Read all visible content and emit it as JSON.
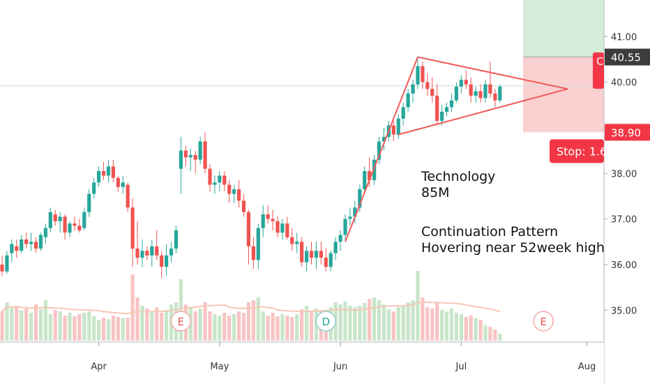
{
  "chart_data": {
    "type": "candlestick",
    "y_axis": {
      "range": [
        34.3,
        41.8
      ],
      "ticks": [
        "41.00",
        "40.00",
        "38.00",
        "37.00",
        "36.00",
        "35.00"
      ],
      "gridline": 39.92
    },
    "x_axis": {
      "ticks": [
        "Apr",
        "May",
        "Jun",
        "Jul",
        "Aug"
      ]
    },
    "price_tags": [
      {
        "label": "40.55",
        "value": 40.55,
        "color": "#3c3c3c"
      },
      {
        "label": "38.90",
        "value": 38.9,
        "color": "#f23645"
      }
    ],
    "stop_label": "Stop: 1.6",
    "position_zones": {
      "target_top": 41.8,
      "entry": 40.55,
      "stop": 38.9,
      "target_color": "#d5ecd8",
      "stop_color": "#fbd0d0"
    },
    "event_markers": [
      {
        "label": "E",
        "bar": 37
      },
      {
        "label": "D",
        "bar": 67
      },
      {
        "label": "E",
        "bar": 112
      }
    ],
    "annotations": [
      {
        "lines": [
          "Technology",
          "85M"
        ]
      },
      {
        "lines": [
          "Continuation Pattern",
          "Hovering near 52week high"
        ]
      }
    ],
    "colors": {
      "up": "#26a69a",
      "down": "#ef5350",
      "trendline": "#f05a5a",
      "volume_ma": "#f6c7b4"
    },
    "candles": [
      [
        36.0,
        36.2,
        35.75,
        35.85
      ],
      [
        35.85,
        36.3,
        35.8,
        36.2
      ],
      [
        36.25,
        36.55,
        36.05,
        36.45
      ],
      [
        36.4,
        36.55,
        36.15,
        36.3
      ],
      [
        36.3,
        36.65,
        36.25,
        36.55
      ],
      [
        36.55,
        36.7,
        36.35,
        36.45
      ],
      [
        36.45,
        36.7,
        36.3,
        36.5
      ],
      [
        36.5,
        36.6,
        36.25,
        36.35
      ],
      [
        36.35,
        36.7,
        36.3,
        36.65
      ],
      [
        36.6,
        36.9,
        36.45,
        36.8
      ],
      [
        36.8,
        37.25,
        36.7,
        37.15
      ],
      [
        37.1,
        37.2,
        36.85,
        36.95
      ],
      [
        36.95,
        37.15,
        36.7,
        37.05
      ],
      [
        37.05,
        37.1,
        36.55,
        36.7
      ],
      [
        36.7,
        36.95,
        36.6,
        36.9
      ],
      [
        36.9,
        37.05,
        36.75,
        36.85
      ],
      [
        36.85,
        37.0,
        36.7,
        36.75
      ],
      [
        36.8,
        37.25,
        36.75,
        37.15
      ],
      [
        37.15,
        37.65,
        37.05,
        37.55
      ],
      [
        37.55,
        37.9,
        37.45,
        37.8
      ],
      [
        37.8,
        38.15,
        37.7,
        38.05
      ],
      [
        38.05,
        38.25,
        37.85,
        37.95
      ],
      [
        37.95,
        38.3,
        37.8,
        38.15
      ],
      [
        38.15,
        38.3,
        37.8,
        37.9
      ],
      [
        37.9,
        37.95,
        37.6,
        37.7
      ],
      [
        37.7,
        37.95,
        37.55,
        37.8
      ],
      [
        37.75,
        37.8,
        37.15,
        37.25
      ],
      [
        37.25,
        37.45,
        35.95,
        36.35
      ],
      [
        36.35,
        36.95,
        36.0,
        36.15
      ],
      [
        36.15,
        36.55,
        35.95,
        36.3
      ],
      [
        36.3,
        36.4,
        36.1,
        36.2
      ],
      [
        36.2,
        36.55,
        35.95,
        36.4
      ],
      [
        36.4,
        36.75,
        36.1,
        36.2
      ],
      [
        36.2,
        36.3,
        35.7,
        35.95
      ],
      [
        35.95,
        36.45,
        35.75,
        36.2
      ],
      [
        36.2,
        36.5,
        36.05,
        36.35
      ],
      [
        36.35,
        36.85,
        36.25,
        36.75
      ],
      [
        38.1,
        38.8,
        37.55,
        38.5
      ],
      [
        38.5,
        38.6,
        38.15,
        38.35
      ],
      [
        38.35,
        38.55,
        38.05,
        38.4
      ],
      [
        38.4,
        38.5,
        38.0,
        38.3
      ],
      [
        38.3,
        38.8,
        38.2,
        38.7
      ],
      [
        38.7,
        38.9,
        38.0,
        38.1
      ],
      [
        38.1,
        38.2,
        37.6,
        37.75
      ],
      [
        37.75,
        37.95,
        37.55,
        37.8
      ],
      [
        37.8,
        38.05,
        37.6,
        37.95
      ],
      [
        37.95,
        38.05,
        37.6,
        37.75
      ],
      [
        37.75,
        37.85,
        37.35,
        37.55
      ],
      [
        37.55,
        37.75,
        37.35,
        37.65
      ],
      [
        37.65,
        37.85,
        37.25,
        37.4
      ],
      [
        37.4,
        37.55,
        37.05,
        37.15
      ],
      [
        37.15,
        37.2,
        36.0,
        36.4
      ],
      [
        36.4,
        36.6,
        35.9,
        36.1
      ],
      [
        36.1,
        36.9,
        35.9,
        36.8
      ],
      [
        36.8,
        37.3,
        36.6,
        37.1
      ],
      [
        37.1,
        37.3,
        36.9,
        37.0
      ],
      [
        37.0,
        37.2,
        36.75,
        36.95
      ],
      [
        36.95,
        37.05,
        36.6,
        36.7
      ],
      [
        36.7,
        37.0,
        36.55,
        36.9
      ],
      [
        36.9,
        37.05,
        36.55,
        36.6
      ],
      [
        36.6,
        36.8,
        36.3,
        36.45
      ],
      [
        36.45,
        36.7,
        36.25,
        36.5
      ],
      [
        36.5,
        36.6,
        35.95,
        36.05
      ],
      [
        36.05,
        36.4,
        35.85,
        36.3
      ],
      [
        36.3,
        36.5,
        36.0,
        36.15
      ],
      [
        36.15,
        36.5,
        35.9,
        36.3
      ],
      [
        36.3,
        36.5,
        36.0,
        36.15
      ],
      [
        36.15,
        36.35,
        35.85,
        35.95
      ],
      [
        35.95,
        36.3,
        35.85,
        36.25
      ],
      [
        36.25,
        36.6,
        36.1,
        36.5
      ],
      [
        36.5,
        36.75,
        36.3,
        36.65
      ],
      [
        36.65,
        37.1,
        36.5,
        37.0
      ],
      [
        37.0,
        37.25,
        36.85,
        37.05
      ],
      [
        37.05,
        37.4,
        36.9,
        37.25
      ],
      [
        37.25,
        37.75,
        37.15,
        37.65
      ],
      [
        37.65,
        38.15,
        37.55,
        38.05
      ],
      [
        38.05,
        38.35,
        37.7,
        37.85
      ],
      [
        37.85,
        38.4,
        37.75,
        38.3
      ],
      [
        38.3,
        38.8,
        38.2,
        38.7
      ],
      [
        38.7,
        39.0,
        38.5,
        38.8
      ],
      [
        38.8,
        39.15,
        38.7,
        39.05
      ],
      [
        39.05,
        39.15,
        38.7,
        38.85
      ],
      [
        38.85,
        39.3,
        38.75,
        39.2
      ],
      [
        39.2,
        39.55,
        39.05,
        39.45
      ],
      [
        39.45,
        39.85,
        39.35,
        39.75
      ],
      [
        39.75,
        40.05,
        39.55,
        39.95
      ],
      [
        39.95,
        40.55,
        39.85,
        40.35
      ],
      [
        40.35,
        40.45,
        39.85,
        40.0
      ],
      [
        40.0,
        40.2,
        39.7,
        39.85
      ],
      [
        39.85,
        40.1,
        39.55,
        39.7
      ],
      [
        39.7,
        39.95,
        39.05,
        39.15
      ],
      [
        39.15,
        39.5,
        39.05,
        39.35
      ],
      [
        39.35,
        39.55,
        39.25,
        39.45
      ],
      [
        39.45,
        39.75,
        39.35,
        39.6
      ],
      [
        39.6,
        40.0,
        39.55,
        39.9
      ],
      [
        39.9,
        40.15,
        39.75,
        40.05
      ],
      [
        40.05,
        40.25,
        39.85,
        39.95
      ],
      [
        39.95,
        40.1,
        39.55,
        39.7
      ],
      [
        39.7,
        39.9,
        39.55,
        39.8
      ],
      [
        39.8,
        39.95,
        39.55,
        39.65
      ],
      [
        39.65,
        40.05,
        39.55,
        39.95
      ],
      [
        39.95,
        40.45,
        39.65,
        39.75
      ],
      [
        39.75,
        39.85,
        39.45,
        39.6
      ],
      [
        39.6,
        39.95,
        39.55,
        39.9
      ]
    ],
    "volumes": [
      0.42,
      0.55,
      0.48,
      0.5,
      0.44,
      0.46,
      0.4,
      0.52,
      0.45,
      0.58,
      0.38,
      0.44,
      0.42,
      0.36,
      0.4,
      0.35,
      0.38,
      0.4,
      0.42,
      0.35,
      0.3,
      0.33,
      0.31,
      0.36,
      0.34,
      0.32,
      0.33,
      0.95,
      0.62,
      0.5,
      0.46,
      0.42,
      0.48,
      0.4,
      0.44,
      0.52,
      0.55,
      0.88,
      0.52,
      0.48,
      0.42,
      0.46,
      0.55,
      0.42,
      0.38,
      0.36,
      0.4,
      0.36,
      0.38,
      0.42,
      0.4,
      0.55,
      0.58,
      0.62,
      0.42,
      0.36,
      0.4,
      0.35,
      0.38,
      0.36,
      0.34,
      0.38,
      0.45,
      0.5,
      0.42,
      0.46,
      0.44,
      0.4,
      0.48,
      0.55,
      0.52,
      0.56,
      0.5,
      0.48,
      0.5,
      0.54,
      0.6,
      0.62,
      0.58,
      0.52,
      0.45,
      0.42,
      0.48,
      0.5,
      0.55,
      0.58,
      1.0,
      0.62,
      0.48,
      0.46,
      0.55,
      0.44,
      0.42,
      0.46,
      0.4,
      0.38,
      0.34,
      0.36,
      0.32,
      0.3,
      0.22,
      0.2,
      0.16,
      0.1
    ]
  }
}
